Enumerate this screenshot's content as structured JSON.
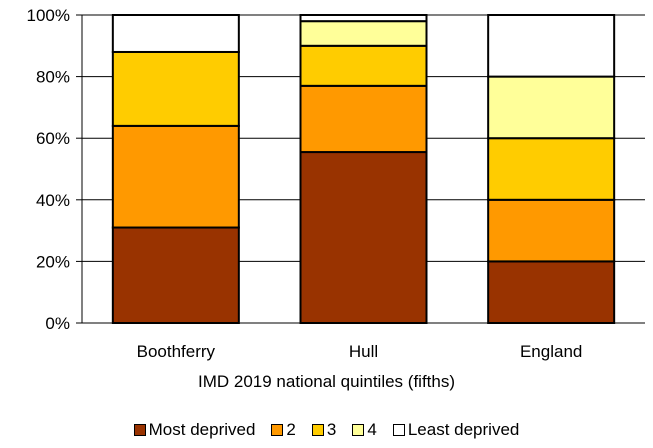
{
  "chart_data": {
    "type": "bar",
    "stacked": true,
    "categories": [
      "Boothferry",
      "Hull",
      "England"
    ],
    "series": [
      {
        "name": "Most deprived",
        "color": "#993300",
        "values": [
          31,
          55.5,
          20
        ]
      },
      {
        "name": "2",
        "color": "#FF9900",
        "values": [
          33,
          21.5,
          20
        ]
      },
      {
        "name": "3",
        "color": "#FFCC00",
        "values": [
          24,
          13,
          20
        ]
      },
      {
        "name": "4",
        "color": "#FFFF99",
        "values": [
          0,
          8,
          20
        ]
      },
      {
        "name": "Least deprived",
        "color": "#FFFFFF",
        "values": [
          12,
          2,
          20
        ]
      }
    ],
    "xlabel": "IMD 2019 national quintiles (fifths)",
    "ylabel": "",
    "ylim": [
      0,
      100
    ],
    "yticks": [
      "0%",
      "20%",
      "40%",
      "60%",
      "80%",
      "100%"
    ],
    "grid": true,
    "legend_position": "bottom"
  }
}
